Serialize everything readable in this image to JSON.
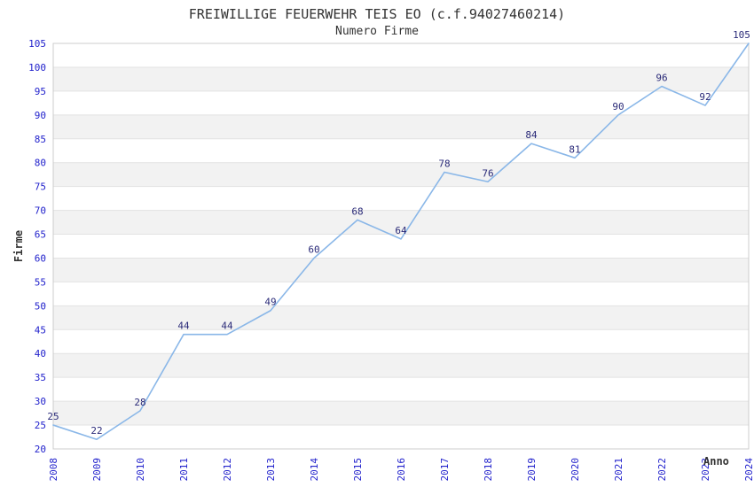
{
  "chart_data": {
    "type": "line",
    "title": "FREIWILLIGE FEUERWEHR TEIS EO (c.f.94027460214)",
    "subtitle": "Numero Firme",
    "xlabel": "Anno",
    "ylabel": "Firme",
    "x": [
      2008,
      2009,
      2010,
      2011,
      2012,
      2013,
      2014,
      2015,
      2016,
      2017,
      2018,
      2019,
      2020,
      2021,
      2022,
      2023,
      2024
    ],
    "values": [
      25,
      22,
      28,
      44,
      44,
      49,
      60,
      68,
      64,
      78,
      76,
      84,
      81,
      90,
      96,
      92,
      105
    ],
    "ylim": [
      20,
      105
    ],
    "ytick_step": 5,
    "grid": "horizontal-bands",
    "legend": "none",
    "point_labels": true,
    "markers": "none",
    "x_tick_rotation": -90,
    "colors": {
      "line": "#8ab7e8",
      "tick_label": "#2222cc",
      "point_label": "#2a2a78",
      "band": "#f2f2f2",
      "gridline": "#e2e2e2",
      "plot_border": "#cccccc",
      "text": "#333333",
      "background": "#ffffff"
    }
  }
}
